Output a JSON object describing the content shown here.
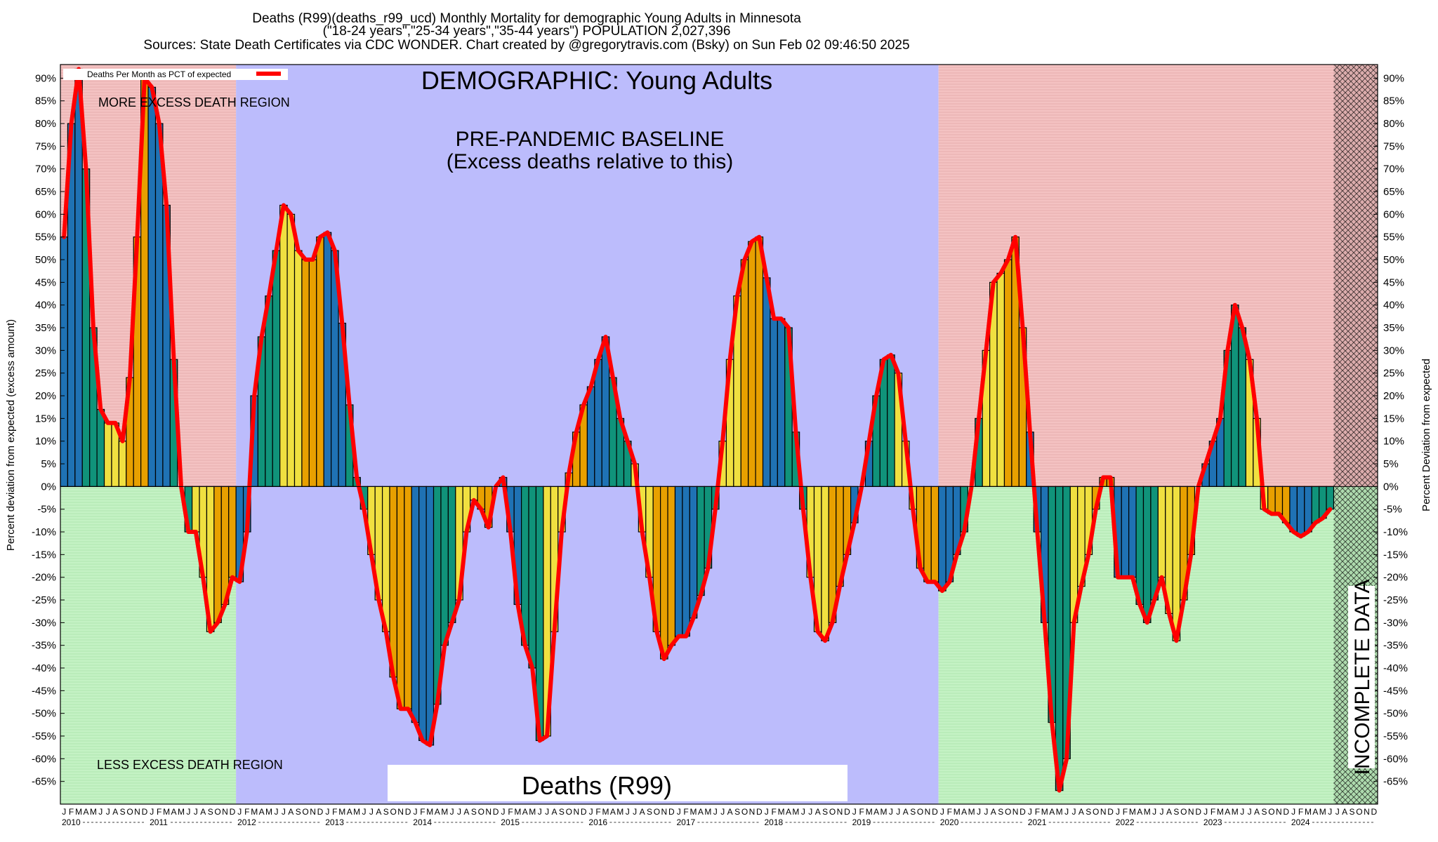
{
  "header": {
    "line1": "Deaths (R99)(deaths_r99_ucd) Monthly Mortality for demographic Young Adults in Minnesota",
    "line2": "(\"18-24 years\",\"25-34 years\",\"35-44 years\") POPULATION 2,027,396",
    "line3": "Sources: State Death Certificates via CDC WONDER.               Chart created by @gregorytravis.com (Bsky) on Sun Feb 02 09:46:50 2025"
  },
  "annotations": {
    "demographic": "DEMOGRAPHIC: Young Adults",
    "baseline_1": "PRE-PANDEMIC BASELINE",
    "baseline_2": "(Excess deaths relative to this)",
    "more_region": "MORE EXCESS DEATH REGION",
    "less_region": "LESS EXCESS DEATH REGION",
    "cause_box": "Deaths (R99)",
    "incomplete": "INCOMPLETE DATA"
  },
  "legend": {
    "label": "Deaths Per Month as PCT of expected"
  },
  "colors": {
    "excess_region": "#f4c2c2",
    "less_region": "#c4f2c4",
    "baseline_region": "#bcbcfc",
    "line": "#ff0000",
    "bar_blue": "#1f72b4",
    "bar_green": "#10937a",
    "bar_yellow": "#f0e040",
    "bar_orange": "#e8a000"
  },
  "chart_data": {
    "type": "bar",
    "title": "Deaths (R99)(deaths_r99_ucd) Monthly Mortality for demographic Young Adults in Minnesota",
    "ylabel_left": "Percent deviation from expected (excess amount)",
    "ylabel_right": "Percent Deviation from expected",
    "ylim": [
      -70,
      93
    ],
    "yticks": [
      90,
      85,
      80,
      75,
      70,
      65,
      60,
      55,
      50,
      45,
      40,
      35,
      30,
      25,
      20,
      15,
      10,
      5,
      0,
      -5,
      -10,
      -15,
      -20,
      -25,
      -30,
      -35,
      -40,
      -45,
      -50,
      -55,
      -60,
      -65
    ],
    "ytick_labels": [
      "90%",
      "85%",
      "80%",
      "75%",
      "70%",
      "65%",
      "60%",
      "55%",
      "50%",
      "45%",
      "40%",
      "35%",
      "30%",
      "25%",
      "20%",
      "15%",
      "10%",
      "5%",
      "0%",
      "-5%",
      "-10%",
      "-15%",
      "-20%",
      "-25%",
      "-30%",
      "-35%",
      "-40%",
      "-45%",
      "-50%",
      "-55%",
      "-60%",
      "-65%"
    ],
    "start": "2010-01",
    "end": "2024-12",
    "month_letters": [
      "J",
      "F",
      "M",
      "A",
      "M",
      "J",
      "J",
      "A",
      "S",
      "O",
      "N",
      "D"
    ],
    "years": [
      "2010",
      "2011",
      "2012",
      "2013",
      "2014",
      "2015",
      "2016",
      "2017",
      "2018",
      "2019",
      "2020",
      "2021",
      "2022",
      "2023",
      "2024"
    ],
    "baseline_period": [
      "2012-01",
      "2019-12"
    ],
    "incomplete_period": [
      "2024-07",
      "2024-12"
    ],
    "series": [
      {
        "name": "Deaths Per Month as PCT of expected",
        "values": [
          55,
          80,
          92,
          70,
          35,
          17,
          14,
          14,
          10,
          24,
          55,
          90,
          88,
          80,
          62,
          28,
          0,
          -10,
          -10,
          -20,
          -32,
          -30,
          -26,
          -20,
          -21,
          -10,
          20,
          33,
          42,
          52,
          62,
          60,
          52,
          50,
          50,
          55,
          56,
          52,
          36,
          18,
          2,
          -5,
          -15,
          -25,
          -32,
          -42,
          -49,
          -49,
          -52,
          -56,
          -57,
          -48,
          -35,
          -30,
          -25,
          -10,
          -3,
          -5,
          -9,
          0,
          2,
          -10,
          -26,
          -35,
          -40,
          -56,
          -55,
          -32,
          -10,
          3,
          12,
          18,
          22,
          28,
          33,
          24,
          15,
          10,
          5,
          -10,
          -20,
          -32,
          -38,
          -35,
          -33,
          -33,
          -29,
          -24,
          -18,
          -5,
          10,
          28,
          42,
          50,
          54,
          55,
          46,
          37,
          37,
          35,
          12,
          -5,
          -20,
          -32,
          -34,
          -30,
          -22,
          -15,
          -8,
          0,
          10,
          20,
          28,
          29,
          25,
          10,
          -5,
          -18,
          -21,
          -21,
          -23,
          -21,
          -15,
          -10,
          0,
          15,
          30,
          45,
          47,
          50,
          55,
          35,
          12,
          -10,
          -30,
          -52,
          -67,
          -60,
          -30,
          -22,
          -15,
          -5,
          2,
          2,
          -20,
          -20,
          -20,
          -26,
          -30,
          -25,
          -20,
          -28,
          -34,
          -25,
          -15,
          0,
          5,
          10,
          15,
          30,
          40,
          35,
          28,
          15,
          -5,
          -6,
          -6,
          -8,
          -10,
          -11,
          -10,
          -8,
          -7,
          -5
        ]
      }
    ],
    "grid": false,
    "legend_position": "top-left"
  }
}
